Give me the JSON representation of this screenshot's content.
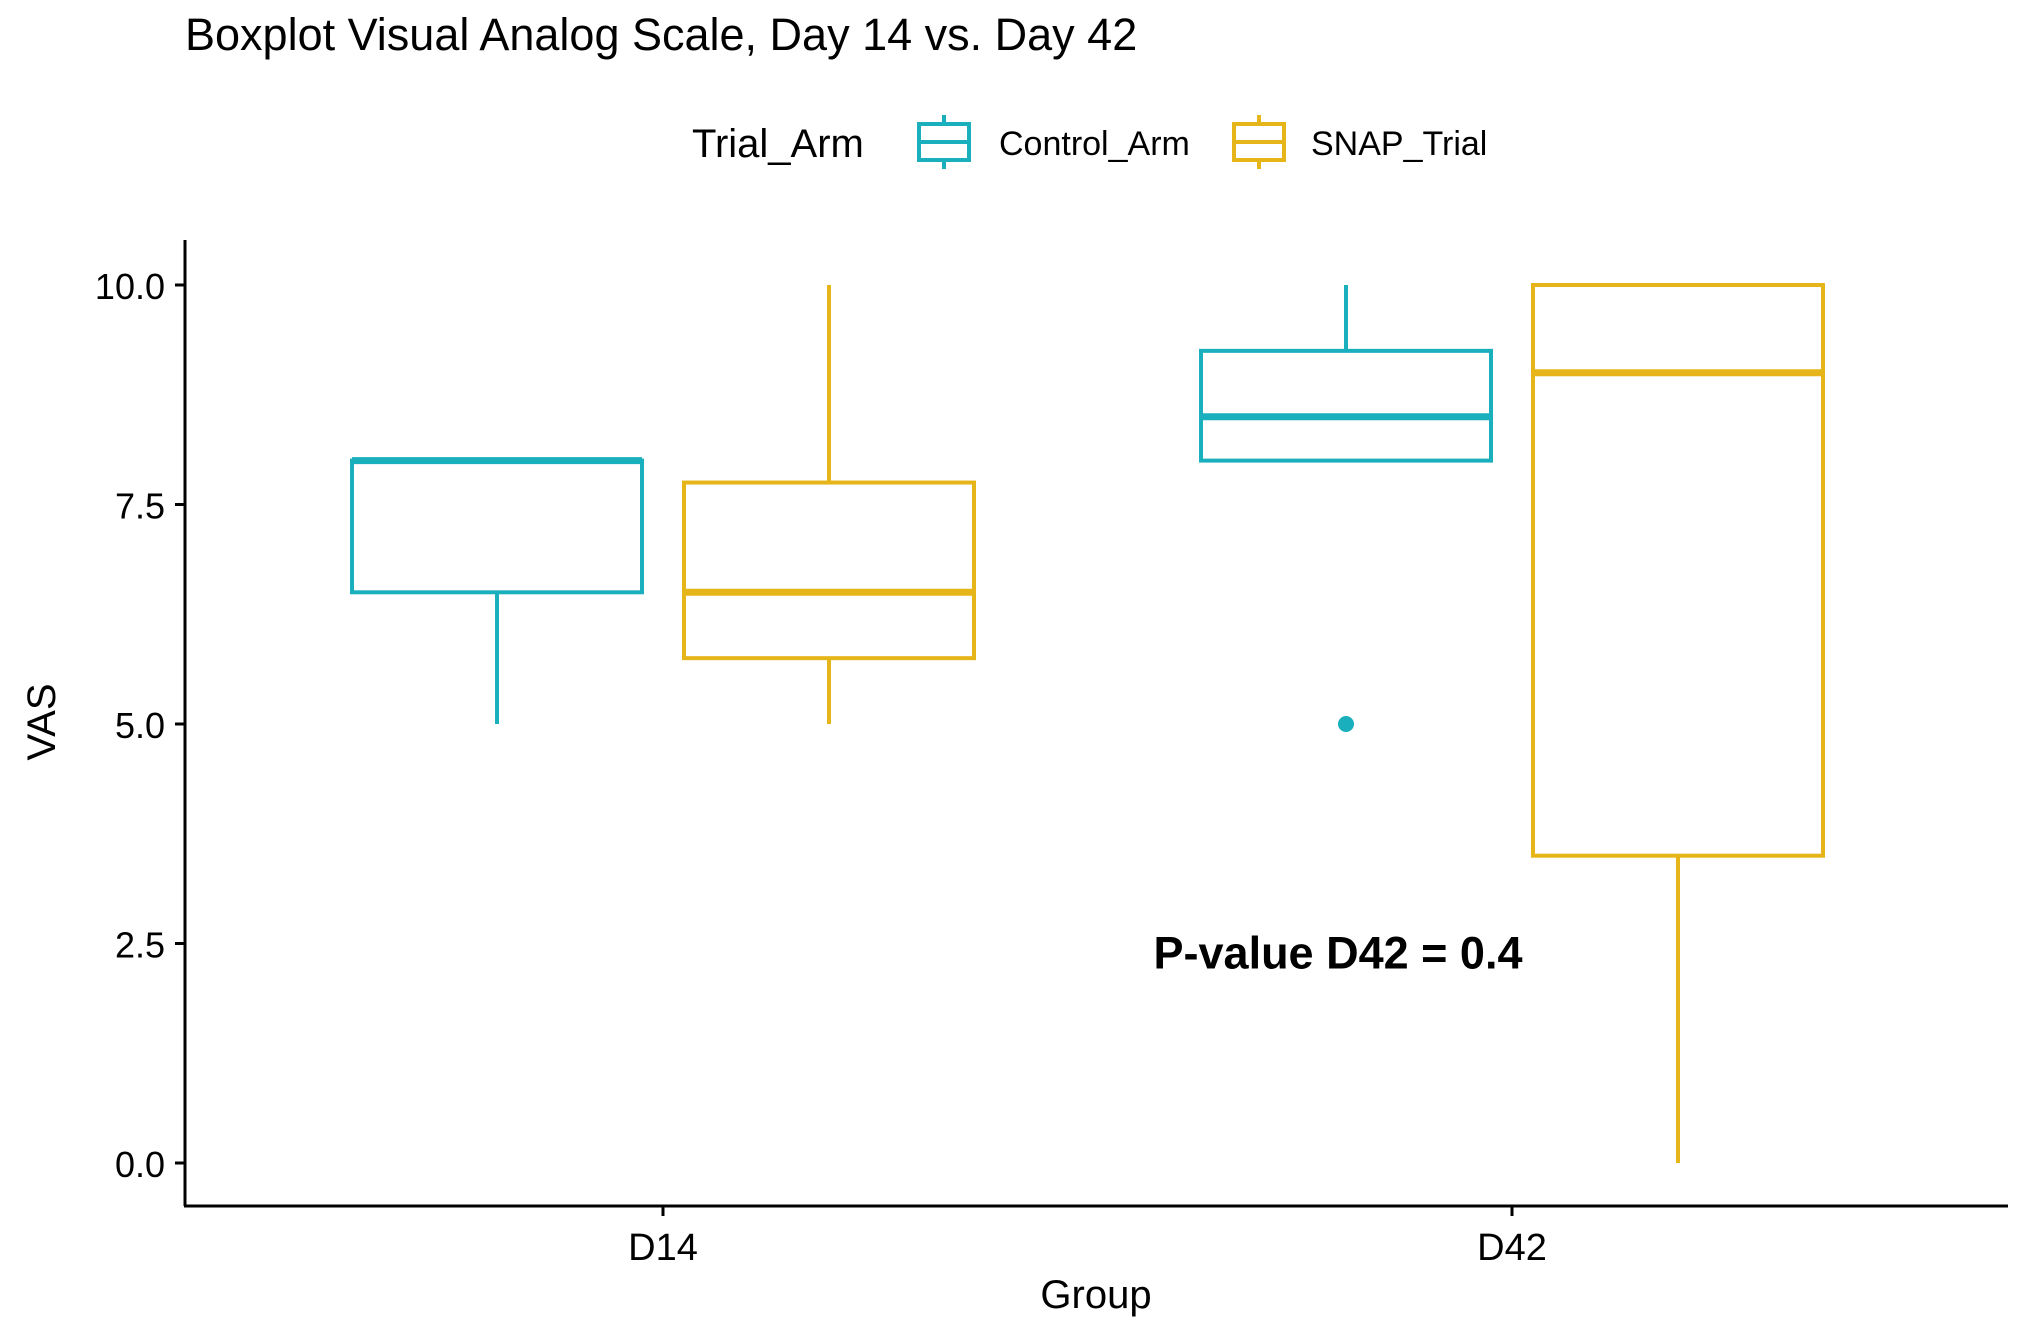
{
  "chart_data": {
    "type": "boxplot",
    "title": "Boxplot Visual Analog Scale, Day 14 vs. Day 42",
    "xlabel": "Group",
    "ylabel": "VAS",
    "ylim": [
      0,
      10
    ],
    "y_ticks": [
      "0.0",
      "2.5",
      "5.0",
      "7.5",
      "10.0"
    ],
    "categories": [
      "D14",
      "D42"
    ],
    "legend": {
      "title": "Trial_Arm",
      "position": "top"
    },
    "series": [
      {
        "name": "Control_Arm",
        "color": "#1AAFBD",
        "boxes": [
          {
            "group": "D14",
            "min": 5.0,
            "q1": 6.5,
            "median": 8.0,
            "q3": 8.0,
            "max": 8.0,
            "outliers": []
          },
          {
            "group": "D42",
            "min": 8.0,
            "q1": 8.0,
            "median": 8.5,
            "q3": 9.25,
            "max": 10.0,
            "outliers": [
              5.0
            ]
          }
        ]
      },
      {
        "name": "SNAP_Trial",
        "color": "#E6B51A",
        "boxes": [
          {
            "group": "D14",
            "min": 5.0,
            "q1": 5.75,
            "median": 6.5,
            "q3": 7.75,
            "max": 10.0,
            "outliers": []
          },
          {
            "group": "D42",
            "min": 0.0,
            "q1": 3.5,
            "median": 9.0,
            "q3": 10.0,
            "max": 10.0,
            "outliers": []
          }
        ]
      }
    ],
    "annotation": {
      "text": "P-value D42 = 0.4",
      "x_group": "D42",
      "y": 2.4
    },
    "grid": false
  }
}
